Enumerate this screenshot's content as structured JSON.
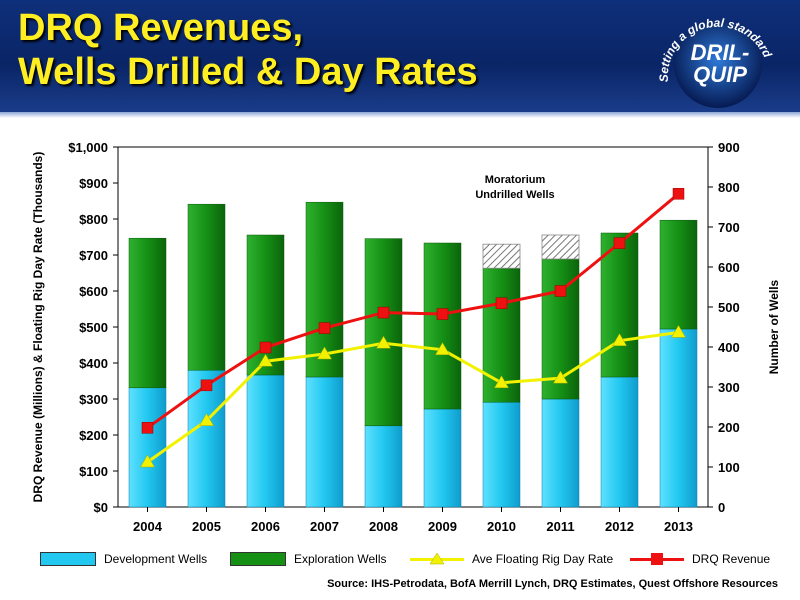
{
  "header": {
    "title_line1": "DRQ Revenues,",
    "title_line2": "Wells Drilled & Day Rates",
    "logo_name": "DRIL-QUIP",
    "logo_line1": "DRIL-",
    "logo_line2": "QUIP",
    "logo_tagline": "Setting a global standard"
  },
  "colors": {
    "development": "#22c8f0",
    "exploration": "#159015",
    "day_rate": "#f2f200",
    "revenue": "#ee1111",
    "moratorium": "#bbbbbb"
  },
  "chart_data": {
    "type": "bar",
    "categories": [
      "2004",
      "2005",
      "2006",
      "2007",
      "2008",
      "2009",
      "2010",
      "2011",
      "2012",
      "2013"
    ],
    "y_left": {
      "label": "DRQ Revenue (Millions) & Floating Rig Day Rate (Thousands)",
      "min": 0,
      "max": 1000,
      "step": 100,
      "ticks": [
        "$0",
        "$100",
        "$200",
        "$300",
        "$400",
        "$500",
        "$600",
        "$700",
        "$800",
        "$900",
        "$1,000"
      ]
    },
    "y_right": {
      "label": "Number of Wells",
      "min": 0,
      "max": 900,
      "step": 100,
      "ticks": [
        "0",
        "100",
        "200",
        "300",
        "400",
        "500",
        "600",
        "700",
        "800",
        "900"
      ]
    },
    "series": [
      {
        "name": "Development Wells",
        "type": "bar",
        "axis": "right",
        "stack": "wells",
        "values": [
          298,
          342,
          330,
          325,
          203,
          245,
          262,
          270,
          325,
          445
        ]
      },
      {
        "name": "Exploration Wells",
        "type": "bar",
        "axis": "right",
        "stack": "wells",
        "values": [
          374,
          415,
          350,
          437,
          468,
          415,
          335,
          350,
          360,
          272
        ]
      },
      {
        "name": "Moratorium Undrilled Wells",
        "type": "bar",
        "axis": "right",
        "stack": "wells",
        "values": [
          0,
          0,
          0,
          0,
          0,
          0,
          60,
          60,
          0,
          0
        ]
      },
      {
        "name": "Ave Floating Rig Day Rate",
        "type": "line",
        "axis": "left",
        "values": [
          125,
          240,
          405,
          425,
          455,
          437,
          345,
          358,
          462,
          485
        ]
      },
      {
        "name": "DRQ Revenue",
        "type": "line",
        "axis": "left",
        "values": [
          220,
          338,
          443,
          497,
          540,
          536,
          566,
          600,
          733,
          870
        ]
      }
    ],
    "annotation": {
      "line1": "Moratorium",
      "line2": "Undrilled Wells"
    },
    "grid": false,
    "legend": "bottom"
  },
  "legend": [
    {
      "label": "Development Wells",
      "kind": "bar",
      "color": "#22c8f0"
    },
    {
      "label": "Exploration Wells",
      "kind": "bar",
      "color": "#159015"
    },
    {
      "label": "Ave Floating Rig Day Rate",
      "kind": "line",
      "color": "#f2f200",
      "marker": "triangle"
    },
    {
      "label": "DRQ Revenue",
      "kind": "line",
      "color": "#ee1111",
      "marker": "square"
    }
  ],
  "source": "Source:  IHS-Petrodata, BofA Merrill Lynch, DRQ Estimates, Quest Offshore Resources"
}
